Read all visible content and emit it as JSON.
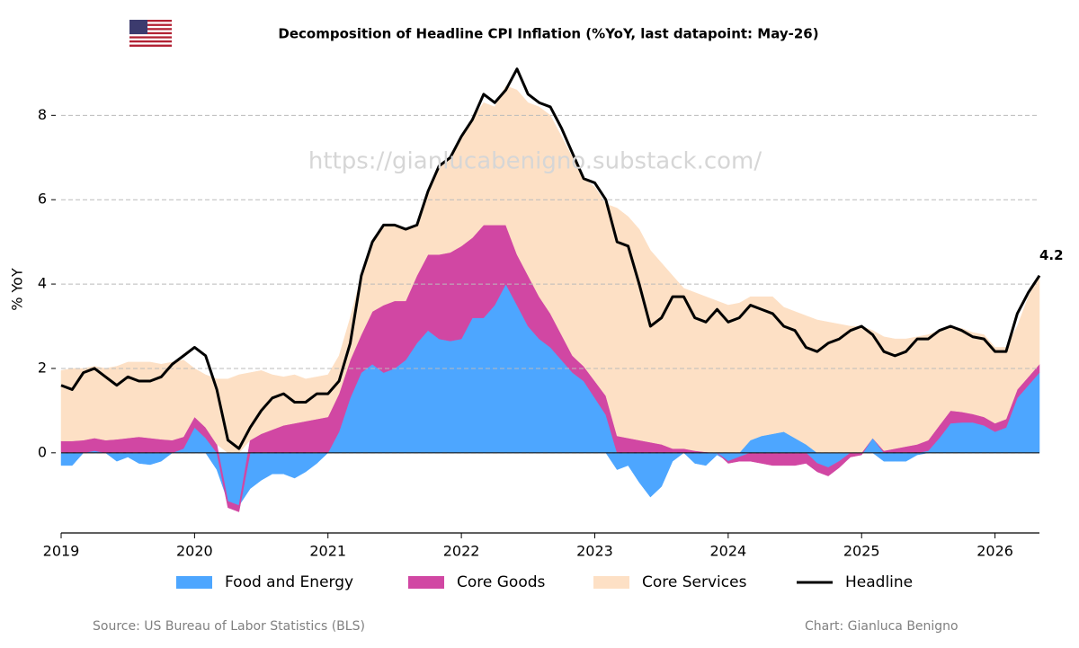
{
  "chart_data": {
    "type": "stacked_area_line",
    "title": "Decomposition of Headline CPI Inflation (%YoY, last datapoint: May-26)",
    "watermark": "https://gianlucabenigno.substack.com/",
    "ylabel": "% YoY",
    "source": "Source: US Bureau of Labor Statistics (BLS)",
    "credit": "Chart: Gianluca Benigno",
    "grid": true,
    "xlim": [
      2019,
      2026.333
    ],
    "xticks": [
      2019,
      2020,
      2021,
      2022,
      2023,
      2024,
      2025,
      2026
    ],
    "ylim": [
      -1.9,
      9.2
    ],
    "yticks": [
      0,
      2,
      4,
      6,
      8
    ],
    "x": [
      2019,
      2019.083,
      2019.167,
      2019.25,
      2019.333,
      2019.417,
      2019.5,
      2019.583,
      2019.667,
      2019.75,
      2019.833,
      2019.917,
      2020,
      2020.083,
      2020.167,
      2020.25,
      2020.333,
      2020.417,
      2020.5,
      2020.583,
      2020.667,
      2020.75,
      2020.833,
      2020.917,
      2021,
      2021.083,
      2021.167,
      2021.25,
      2021.333,
      2021.417,
      2021.5,
      2021.583,
      2021.667,
      2021.75,
      2021.833,
      2021.917,
      2022,
      2022.083,
      2022.167,
      2022.25,
      2022.333,
      2022.417,
      2022.5,
      2022.583,
      2022.667,
      2022.75,
      2022.833,
      2022.917,
      2023,
      2023.083,
      2023.167,
      2023.25,
      2023.333,
      2023.417,
      2023.5,
      2023.583,
      2023.667,
      2023.75,
      2023.833,
      2023.917,
      2024,
      2024.083,
      2024.167,
      2024.25,
      2024.333,
      2024.417,
      2024.5,
      2024.583,
      2024.667,
      2024.75,
      2024.833,
      2024.917,
      2025,
      2025.083,
      2025.167,
      2025.25,
      2025.333,
      2025.417,
      2025.5,
      2025.583,
      2025.667,
      2025.75,
      2025.833,
      2025.917,
      2026,
      2026.083,
      2026.167,
      2026.25,
      2026.333
    ],
    "series": [
      {
        "name": "Food and Energy",
        "color": "#4da6ff",
        "kind": "area",
        "values": [
          -0.3,
          -0.3,
          0.0,
          0.05,
          0.0,
          -0.2,
          -0.1,
          -0.25,
          -0.28,
          -0.2,
          0.0,
          0.1,
          0.6,
          0.35,
          -0.4,
          -1.15,
          -1.25,
          -0.85,
          -0.65,
          -0.5,
          -0.5,
          -0.6,
          -0.45,
          -0.25,
          0.0,
          0.5,
          1.3,
          1.9,
          2.1,
          1.9,
          2.0,
          2.2,
          2.6,
          2.9,
          2.7,
          2.65,
          2.7,
          3.2,
          3.2,
          3.5,
          4.0,
          3.5,
          3.0,
          2.7,
          2.5,
          2.2,
          1.9,
          1.7,
          1.3,
          0.9,
          -0.4,
          -0.3,
          -0.7,
          -1.05,
          -0.8,
          -0.2,
          0.0,
          -0.25,
          -0.3,
          -0.05,
          -0.2,
          -0.1,
          0.3,
          0.4,
          0.45,
          0.5,
          0.35,
          0.2,
          -0.25,
          -0.35,
          -0.2,
          0.0,
          0.0,
          0.35,
          -0.2,
          -0.2,
          -0.2,
          -0.05,
          0.05,
          0.35,
          0.7,
          0.72,
          0.72,
          0.65,
          0.5,
          0.6,
          1.3,
          1.6,
          1.9
        ]
      },
      {
        "name": "Core Goods",
        "color": "#d147a3",
        "kind": "area",
        "values": [
          0.28,
          0.28,
          0.3,
          0.3,
          0.3,
          0.32,
          0.35,
          0.38,
          0.35,
          0.32,
          0.3,
          0.28,
          0.25,
          0.25,
          0.2,
          -0.15,
          -0.15,
          0.3,
          0.45,
          0.55,
          0.65,
          0.7,
          0.75,
          0.8,
          0.85,
          0.9,
          0.9,
          0.9,
          1.25,
          1.6,
          1.6,
          1.4,
          1.6,
          1.8,
          2.0,
          2.1,
          2.2,
          1.9,
          2.2,
          1.9,
          1.4,
          1.2,
          1.2,
          1.0,
          0.8,
          0.6,
          0.4,
          0.35,
          0.4,
          0.45,
          0.4,
          0.35,
          0.3,
          0.25,
          0.2,
          0.1,
          0.1,
          0.05,
          0.02,
          0.0,
          -0.05,
          -0.1,
          -0.2,
          -0.25,
          -0.3,
          -0.3,
          -0.3,
          -0.25,
          -0.2,
          -0.2,
          -0.15,
          -0.1,
          -0.05,
          0.0,
          0.05,
          0.1,
          0.15,
          0.2,
          0.25,
          0.3,
          0.3,
          0.25,
          0.2,
          0.2,
          0.2,
          0.2,
          0.2,
          0.2,
          0.2
        ]
      },
      {
        "name": "Core Services",
        "color": "#fde0c5",
        "kind": "area",
        "values": [
          1.67,
          1.72,
          1.7,
          1.7,
          1.7,
          1.73,
          1.8,
          1.77,
          1.8,
          1.78,
          1.85,
          1.82,
          1.15,
          1.25,
          1.55,
          1.75,
          1.85,
          1.6,
          1.5,
          1.3,
          1.15,
          1.15,
          1.0,
          1.0,
          1.0,
          0.9,
          1.0,
          1.4,
          1.65,
          1.9,
          1.8,
          1.7,
          1.2,
          1.5,
          2.1,
          2.25,
          2.6,
          2.8,
          2.9,
          2.8,
          3.3,
          3.9,
          4.1,
          4.5,
          4.7,
          4.7,
          4.7,
          4.45,
          4.6,
          4.55,
          5.4,
          5.25,
          5.0,
          4.55,
          4.3,
          4.1,
          3.8,
          3.75,
          3.68,
          3.6,
          3.5,
          3.55,
          3.4,
          3.3,
          3.25,
          2.95,
          3.0,
          3.05,
          3.15,
          3.1,
          3.05,
          3.0,
          3.0,
          2.55,
          2.7,
          2.6,
          2.55,
          2.55,
          2.5,
          2.25,
          2.0,
          1.98,
          1.93,
          1.95,
          1.8,
          1.7,
          1.5,
          1.9,
          2.1
        ]
      },
      {
        "name": "Headline",
        "color": "#000000",
        "kind": "line",
        "values": [
          1.6,
          1.5,
          1.9,
          2.0,
          1.8,
          1.6,
          1.8,
          1.7,
          1.7,
          1.8,
          2.1,
          2.3,
          2.5,
          2.3,
          1.5,
          0.3,
          0.1,
          0.6,
          1.0,
          1.3,
          1.4,
          1.2,
          1.2,
          1.4,
          1.4,
          1.7,
          2.6,
          4.2,
          5.0,
          5.4,
          5.4,
          5.3,
          5.4,
          6.2,
          6.8,
          7.0,
          7.5,
          7.9,
          8.5,
          8.3,
          8.6,
          9.1,
          8.5,
          8.3,
          8.2,
          7.7,
          7.1,
          6.5,
          6.4,
          6.0,
          5.0,
          4.9,
          4.0,
          3.0,
          3.2,
          3.7,
          3.7,
          3.2,
          3.1,
          3.4,
          3.1,
          3.2,
          3.5,
          3.4,
          3.3,
          3.0,
          2.9,
          2.5,
          2.4,
          2.6,
          2.7,
          2.9,
          3.0,
          2.8,
          2.4,
          2.3,
          2.4,
          2.7,
          2.7,
          2.9,
          3.0,
          2.9,
          2.75,
          2.7,
          2.4,
          2.4,
          3.3,
          3.8,
          4.2
        ]
      }
    ]
  }
}
